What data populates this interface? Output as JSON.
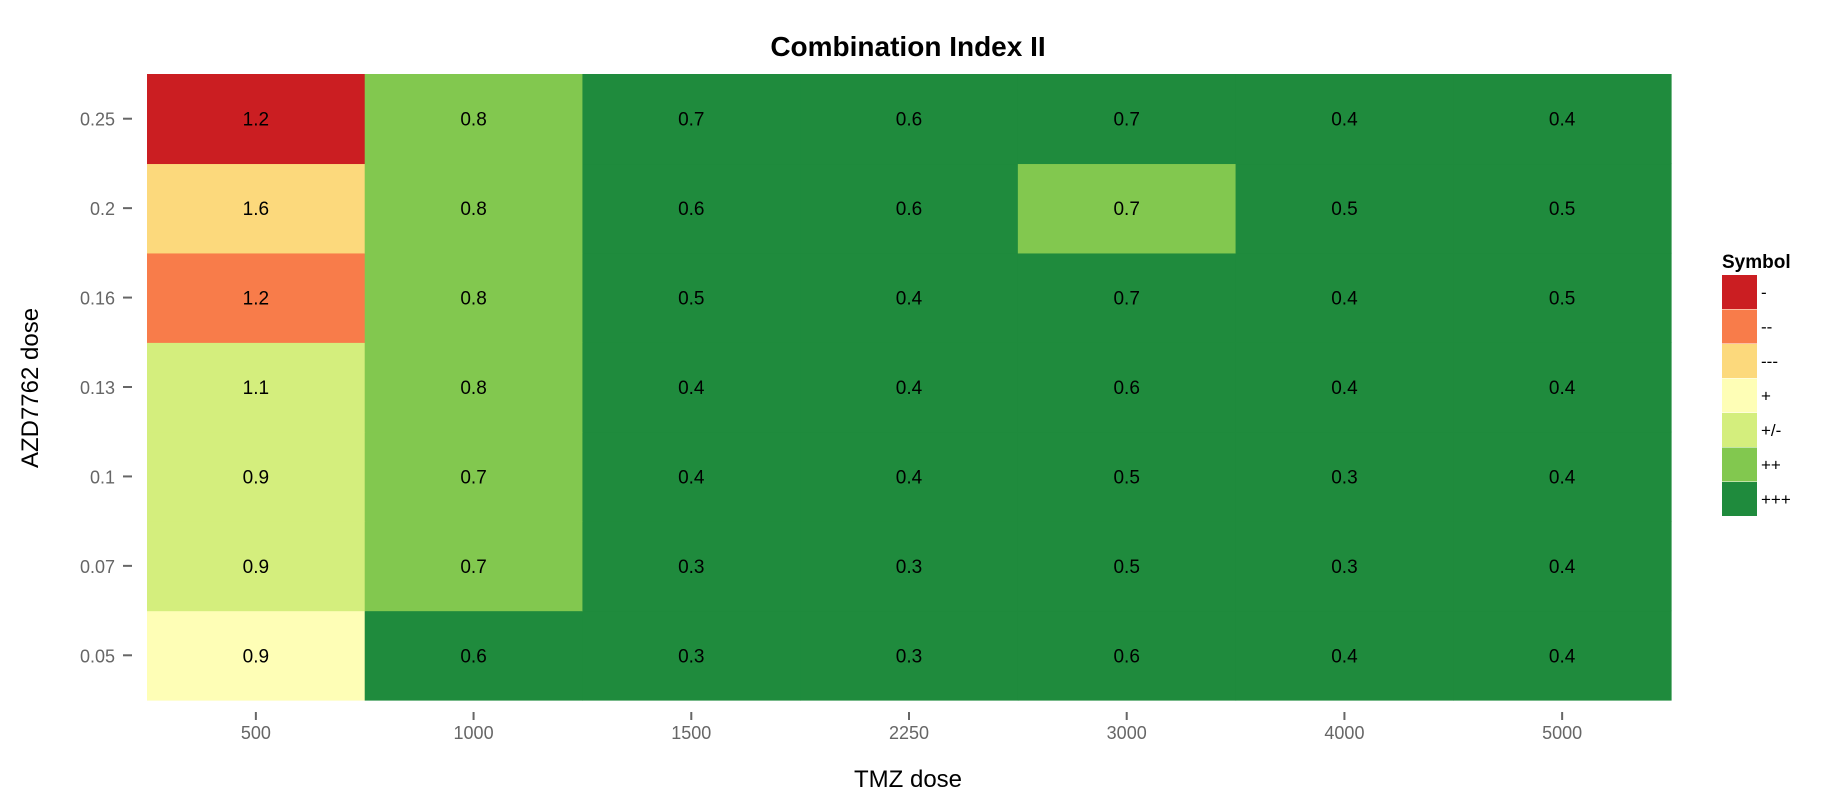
{
  "chart_data": {
    "type": "heatmap",
    "title": "Combination Index II",
    "xlabel": "TMZ dose",
    "ylabel": "AZD7762 dose",
    "x_categories": [
      "500",
      "1000",
      "1500",
      "2250",
      "3000",
      "4000",
      "5000"
    ],
    "y_categories": [
      "0.05",
      "0.07",
      "0.1",
      "0.13",
      "0.16",
      "0.2",
      "0.25"
    ],
    "values": [
      [
        0.9,
        0.6,
        0.3,
        0.3,
        0.6,
        0.4,
        0.4
      ],
      [
        0.9,
        0.7,
        0.3,
        0.3,
        0.5,
        0.3,
        0.4
      ],
      [
        0.9,
        0.7,
        0.4,
        0.4,
        0.5,
        0.3,
        0.4
      ],
      [
        1.1,
        0.8,
        0.4,
        0.4,
        0.6,
        0.4,
        0.4
      ],
      [
        1.2,
        0.8,
        0.5,
        0.4,
        0.7,
        0.4,
        0.5
      ],
      [
        1.6,
        0.8,
        0.6,
        0.6,
        0.7,
        0.5,
        0.5
      ],
      [
        1.2,
        0.8,
        0.7,
        0.6,
        0.7,
        0.4,
        0.4
      ]
    ],
    "value_labels": [
      [
        "0.9",
        "0.6",
        "0.3",
        "0.3",
        "0.6",
        "0.4",
        "0.4"
      ],
      [
        "0.9",
        "0.7",
        "0.3",
        "0.3",
        "0.5",
        "0.3",
        "0.4"
      ],
      [
        "0.9",
        "0.7",
        "0.4",
        "0.4",
        "0.5",
        "0.3",
        "0.4"
      ],
      [
        "1.1",
        "0.8",
        "0.4",
        "0.4",
        "0.6",
        "0.4",
        "0.4"
      ],
      [
        "1.2",
        "0.8",
        "0.5",
        "0.4",
        "0.7",
        "0.4",
        "0.5"
      ],
      [
        "1.6",
        "0.8",
        "0.6",
        "0.6",
        "0.7",
        "0.5",
        "0.5"
      ],
      [
        "1.2",
        "0.8",
        "0.7",
        "0.6",
        "0.7",
        "0.4",
        "0.4"
      ]
    ],
    "symbols": [
      [
        "+",
        "+++",
        "+++",
        "+++",
        "+++",
        "+++",
        "+++"
      ],
      [
        "+/-",
        "++",
        "+++",
        "+++",
        "+++",
        "+++",
        "+++"
      ],
      [
        "+/-",
        "++",
        "+++",
        "+++",
        "+++",
        "+++",
        "+++"
      ],
      [
        "+/-",
        "++",
        "+++",
        "+++",
        "+++",
        "+++",
        "+++"
      ],
      [
        "--",
        "++",
        "+++",
        "+++",
        "+++",
        "+++",
        "+++"
      ],
      [
        "---",
        "++",
        "+++",
        "+++",
        "++",
        "+++",
        "+++"
      ],
      [
        "-",
        "++",
        "+++",
        "+++",
        "+++",
        "+++",
        "+++"
      ]
    ],
    "legend": {
      "title": "Symbol",
      "position": "right",
      "items": [
        {
          "label": "-",
          "color": "#cb1e22"
        },
        {
          "label": "--",
          "color": "#f87c4a"
        },
        {
          "label": "---",
          "color": "#fcd97c"
        },
        {
          "label": "+",
          "color": "#fefeb6"
        },
        {
          "label": "+/-",
          "color": "#d4ee7d"
        },
        {
          "label": "++",
          "color": "#82c84f"
        },
        {
          "label": "+++",
          "color": "#1f8b3d"
        }
      ]
    },
    "grid": false
  }
}
